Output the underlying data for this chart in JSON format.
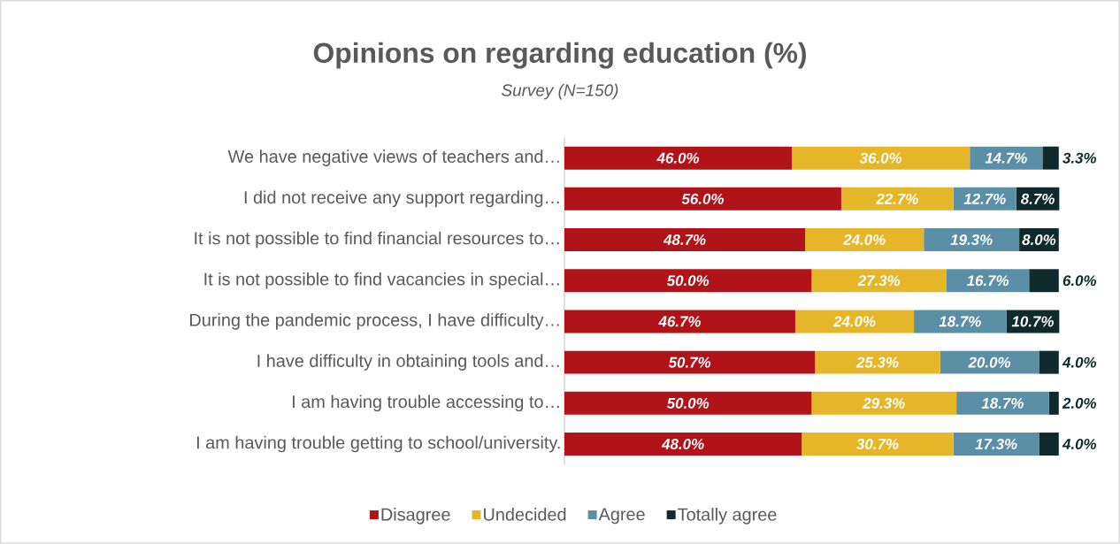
{
  "chart_data": {
    "type": "bar",
    "orientation": "horizontal",
    "stacked": true,
    "title": "Opinions on regarding education (%)",
    "subtitle": "Survey (N=150)",
    "categories": [
      "We have negative views of teachers and…",
      "I did not receive any support regarding…",
      "It is not possible to find financial resources to…",
      "It is not possible to find vacancies in special…",
      "During the pandemic process, I have difficulty…",
      "I have difficulty in obtaining tools and…",
      "I am having trouble accessing to…",
      "I am having trouble getting to school/university."
    ],
    "series": [
      {
        "name": "Disagree",
        "color": "#b01318",
        "values": [
          46.0,
          56.0,
          48.7,
          50.0,
          46.7,
          50.7,
          50.0,
          48.0
        ],
        "value_labels": [
          "46.0%",
          "56.0%",
          "48.7%",
          "50.0%",
          "46.7%",
          "50.7%",
          "50.0%",
          "48.0%"
        ]
      },
      {
        "name": "Undecided",
        "color": "#e6b629",
        "values": [
          36.0,
          22.7,
          24.0,
          27.3,
          24.0,
          25.3,
          29.3,
          30.7
        ],
        "value_labels": [
          "36.0%",
          "22.7%",
          "24.0%",
          "27.3%",
          "24.0%",
          "25.3%",
          "29.3%",
          "30.7%"
        ]
      },
      {
        "name": "Agree",
        "color": "#5b8fa6",
        "values": [
          14.7,
          12.7,
          19.3,
          16.7,
          18.7,
          20.0,
          18.7,
          17.3
        ],
        "value_labels": [
          "14.7%",
          "12.7%",
          "19.3%",
          "16.7%",
          "18.7%",
          "20.0%",
          "18.7%",
          "17.3%"
        ]
      },
      {
        "name": "Totally agree",
        "color": "#0f2a2a",
        "values": [
          3.3,
          8.7,
          8.0,
          6.0,
          10.7,
          4.0,
          2.0,
          4.0
        ],
        "value_labels": [
          "3.3%",
          "8.7%",
          "8.0%",
          "6.0%",
          "10.7%",
          "4.0%",
          "2.0%",
          "4.0%"
        ]
      }
    ],
    "legend": "bottom"
  }
}
